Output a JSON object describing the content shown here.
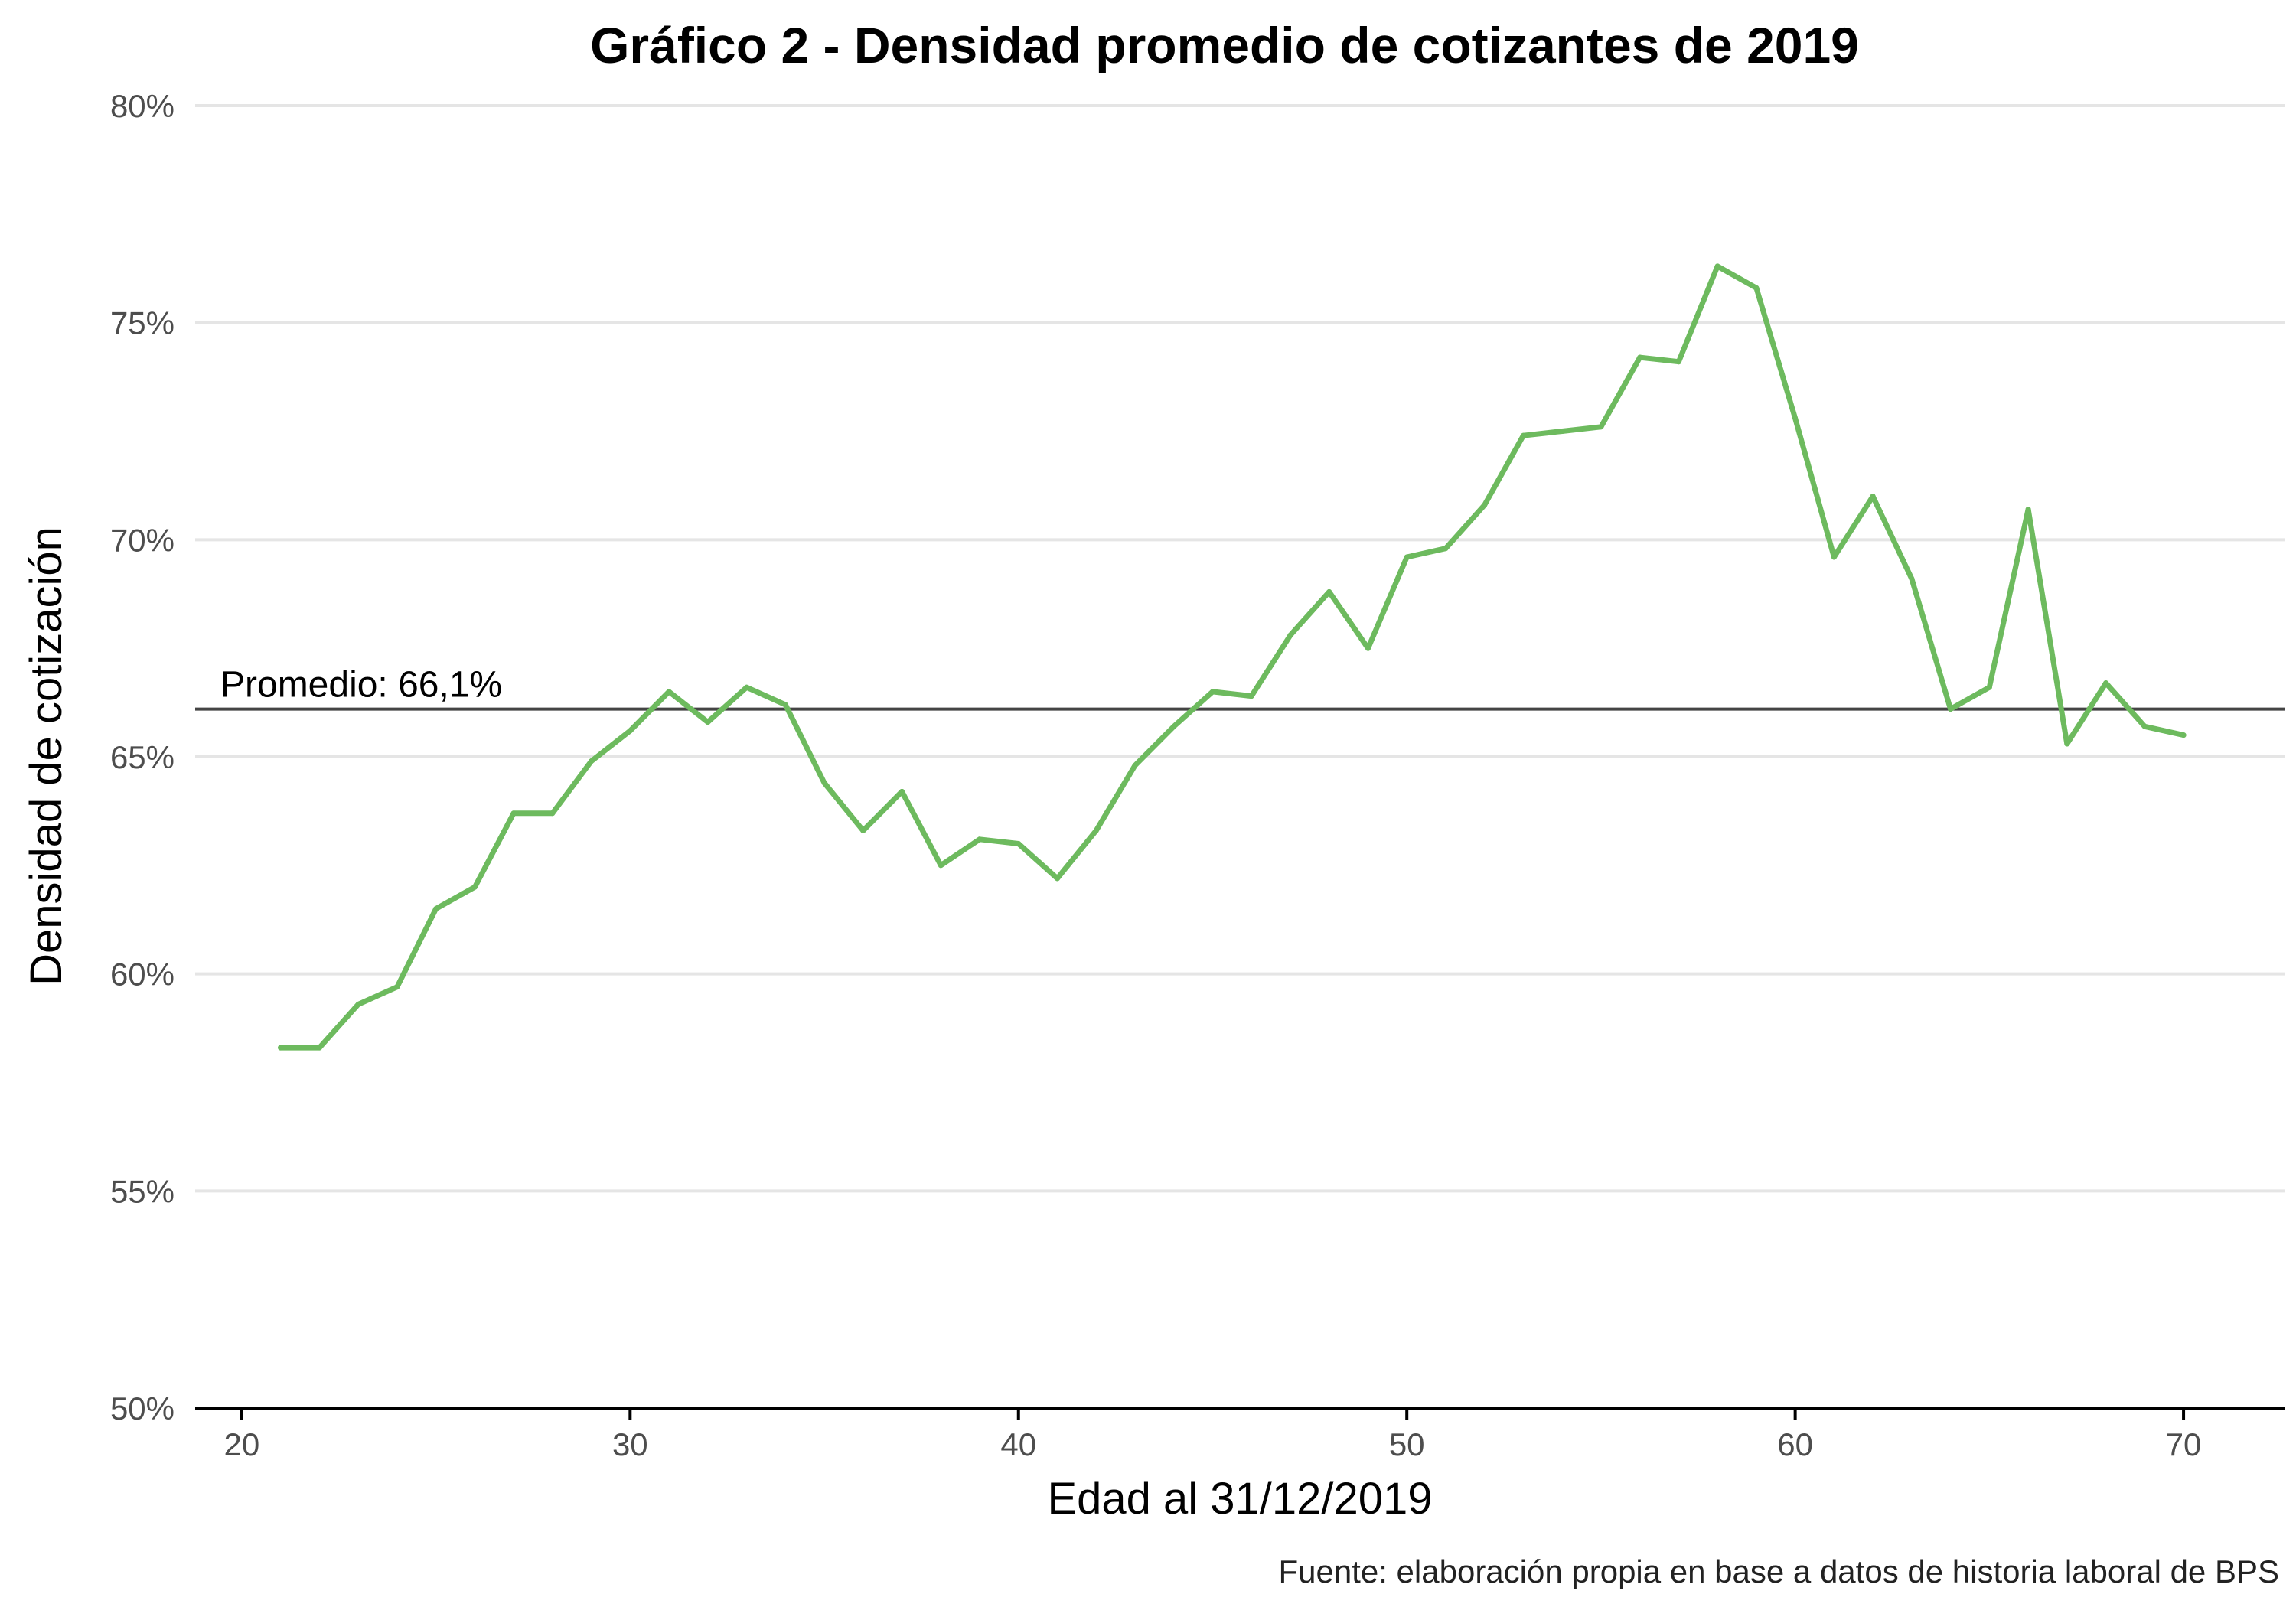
{
  "chart_data": {
    "type": "line",
    "title": "Gráfico 2 - Densidad promedio de cotizantes de 2019",
    "xlabel": "Edad al 31/12/2019",
    "ylabel": "Densidad de cotización",
    "caption": "Fuente: elaboración propia en base a datos de historia laboral de BPS",
    "xlim": [
      18.8,
      72.6
    ],
    "ylim": [
      50,
      80
    ],
    "x_ticks": [
      20,
      30,
      40,
      50,
      60,
      70
    ],
    "x_tick_labels": [
      "20",
      "30",
      "40",
      "50",
      "60",
      "70"
    ],
    "y_ticks": [
      50,
      55,
      60,
      65,
      70,
      75,
      80
    ],
    "y_tick_labels": [
      "50%",
      "55%",
      "60%",
      "65%",
      "70%",
      "75%",
      "80%"
    ],
    "grid": true,
    "line_color": "#6dba5e",
    "reference_line": {
      "value": 66.1,
      "label": "Promedio: 66,1%",
      "color": "#444444"
    },
    "x": [
      21,
      22,
      23,
      24,
      25,
      26,
      27,
      28,
      29,
      30,
      31,
      32,
      33,
      34,
      35,
      36,
      37,
      38,
      39,
      40,
      41,
      42,
      43,
      44,
      45,
      46,
      47,
      48,
      49,
      50,
      51,
      52,
      53,
      54,
      55,
      56,
      57,
      58,
      59,
      60,
      61,
      62,
      63,
      64,
      65,
      66,
      67,
      68,
      69,
      70
    ],
    "values": [
      58.3,
      58.3,
      59.3,
      59.7,
      61.5,
      62.0,
      63.7,
      63.7,
      64.9,
      65.6,
      66.5,
      65.8,
      66.6,
      66.2,
      64.4,
      63.3,
      64.2,
      62.5,
      63.1,
      63.0,
      62.2,
      63.3,
      64.8,
      65.7,
      66.5,
      66.4,
      67.8,
      68.8,
      67.5,
      69.6,
      69.8,
      70.8,
      72.4,
      72.5,
      72.6,
      74.2,
      74.1,
      76.3,
      75.8,
      72.8,
      69.6,
      71.0,
      69.1,
      66.1,
      66.6,
      70.7,
      65.3,
      66.7,
      65.7,
      65.5
    ]
  }
}
